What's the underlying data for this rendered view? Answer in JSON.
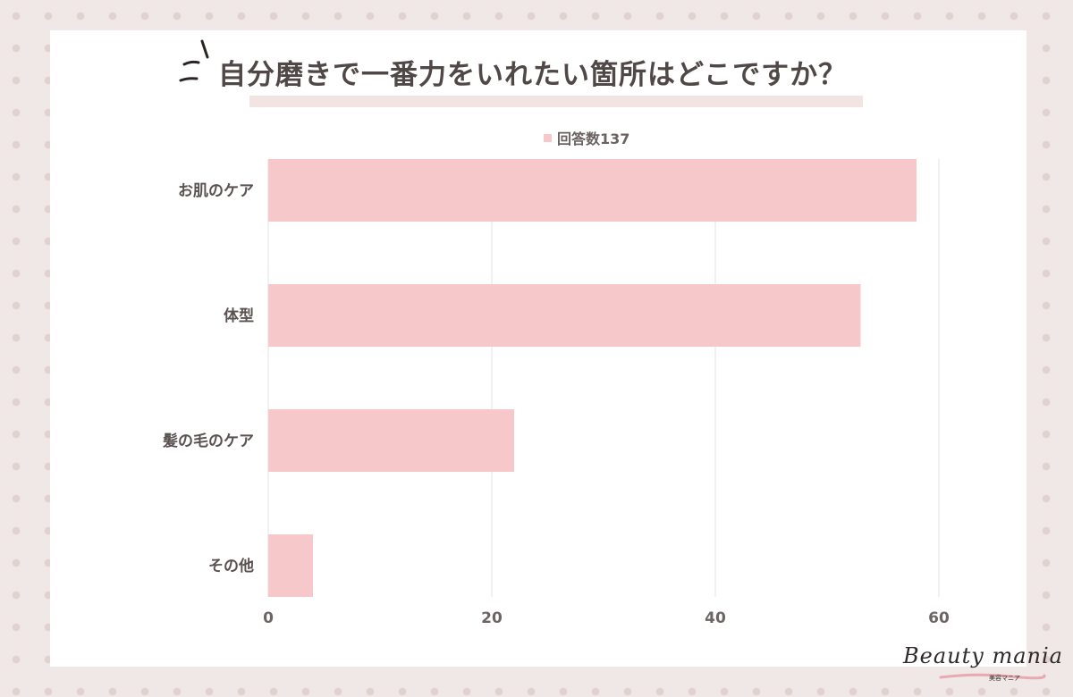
{
  "chart_data": {
    "type": "bar",
    "orientation": "horizontal",
    "title": "自分磨きで一番力をいれたい箇所はどこですか？",
    "categories": [
      "お肌のケア",
      "体型",
      "髪の毛のケア",
      "その他"
    ],
    "series": [
      {
        "name": "回答数137",
        "values": [
          58,
          53,
          22,
          4
        ],
        "color": "#f7c8c9"
      }
    ],
    "xlim": [
      0,
      60
    ],
    "xticks": [
      "0",
      "20",
      "40",
      "60"
    ],
    "grid": true,
    "legend_position": "top-center",
    "xlabel": "",
    "ylabel": ""
  },
  "branding": {
    "logo_text": "Beauty mania",
    "logo_sub": "美容マニア"
  },
  "colors": {
    "bar": "#f7c8c9",
    "grid": "#e6e2e1",
    "text": "#4f4847",
    "background_dots": "#e2d2cf",
    "title_highlight": "#f3e4e4"
  }
}
